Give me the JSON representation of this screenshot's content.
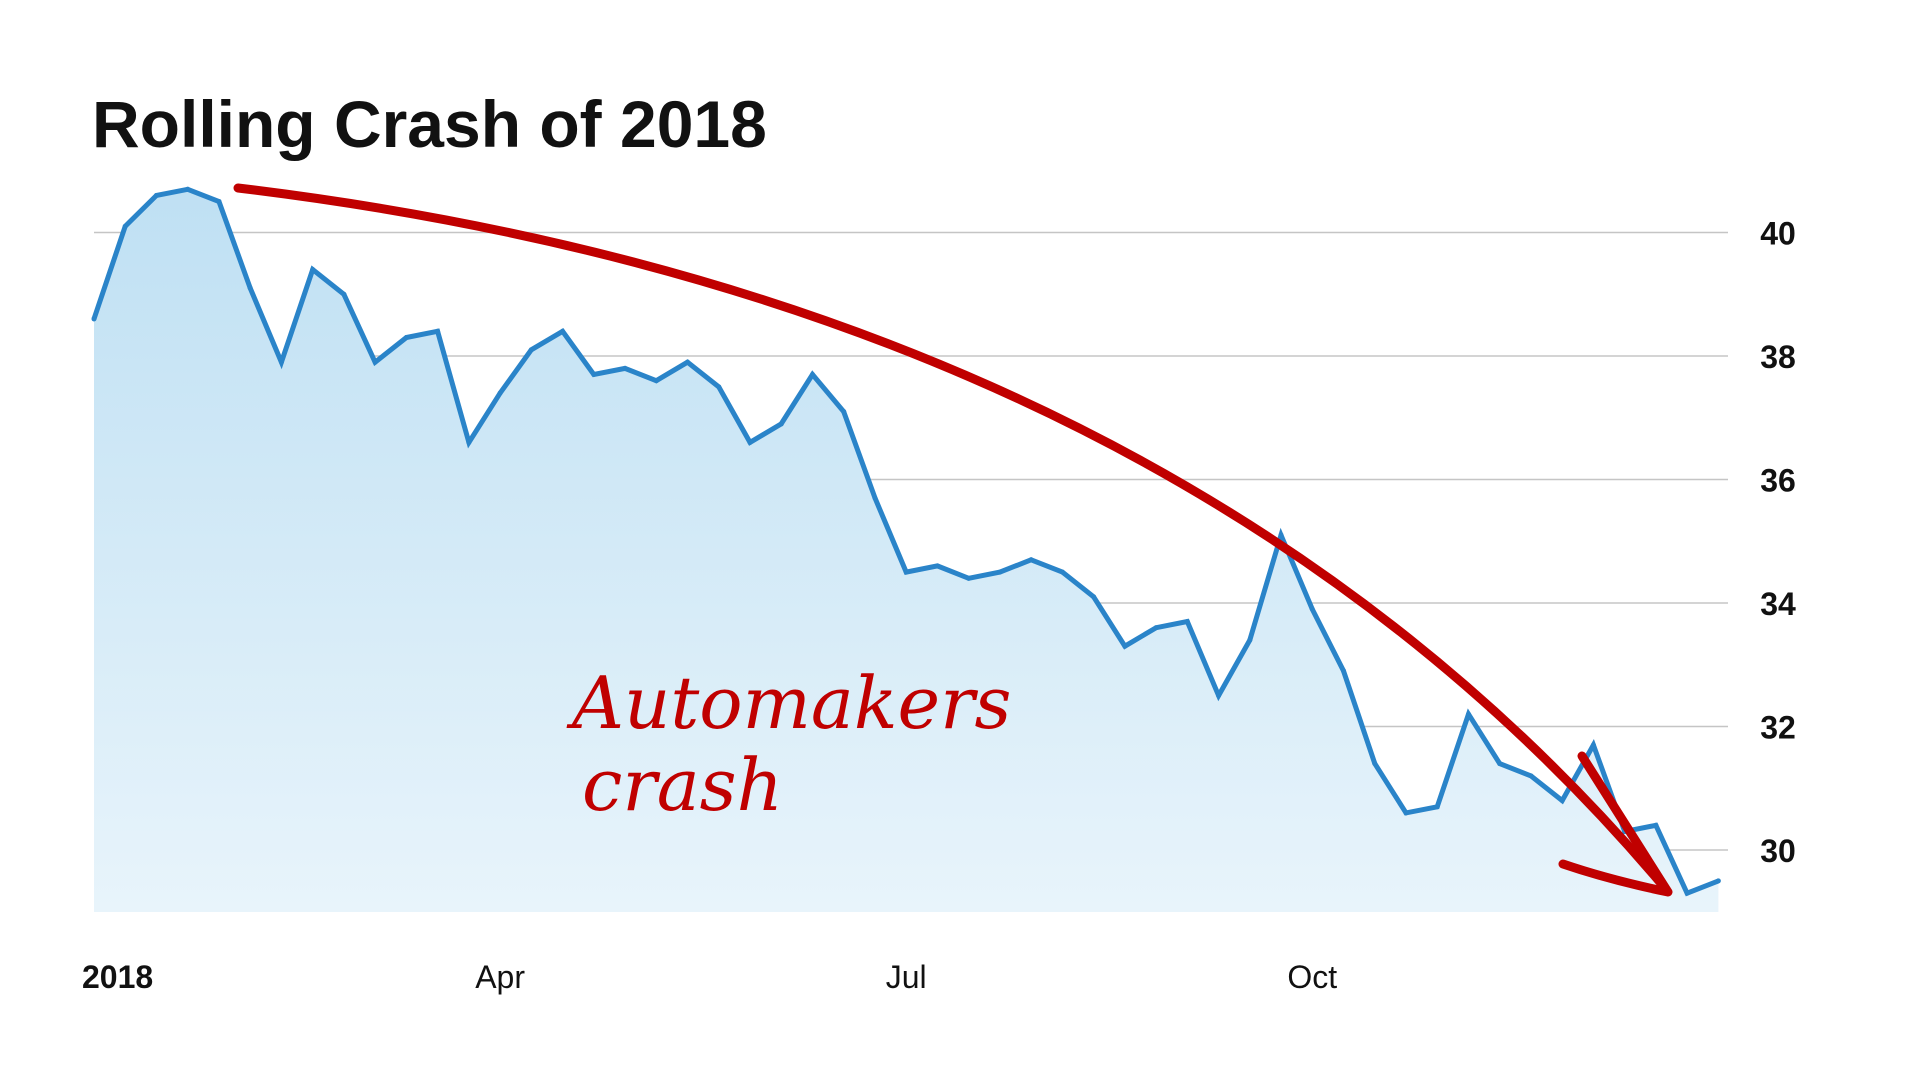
{
  "chart_data": {
    "type": "area",
    "title": "Rolling Crash of 2018",
    "xlabel": "",
    "ylabel": "",
    "x_tick_labels": [
      "2018",
      "Apr",
      "Jul",
      "Oct"
    ],
    "x_ticks": [
      {
        "label": "2018",
        "week": 0,
        "bold": true
      },
      {
        "label": "Apr",
        "week": 13,
        "bold": false
      },
      {
        "label": "Jul",
        "week": 26,
        "bold": false
      },
      {
        "label": "Oct",
        "week": 39,
        "bold": false
      }
    ],
    "y_ticks": [
      30,
      32,
      34,
      36,
      38,
      40
    ],
    "y_tick_labels": [
      "30",
      "32",
      "34",
      "36",
      "38",
      "40"
    ],
    "ylim": [
      29,
      41
    ],
    "x_range_weeks": [
      0,
      52.5
    ],
    "grid": true,
    "y_axis_side": "right",
    "series": [
      {
        "values": [
          38.6,
          40.1,
          40.6,
          40.7,
          40.5,
          39.1,
          37.9,
          39.4,
          39.0,
          37.9,
          38.3,
          38.4,
          36.6,
          37.4,
          38.1,
          38.4,
          37.7,
          37.8,
          37.6,
          37.9,
          37.5,
          36.6,
          36.9,
          37.7,
          37.1,
          35.7,
          34.5,
          34.6,
          34.4,
          34.5,
          34.7,
          34.5,
          34.1,
          33.3,
          33.6,
          33.7,
          32.5,
          33.4,
          35.1,
          33.9,
          32.9,
          31.4,
          30.6,
          30.7,
          32.2,
          31.4,
          31.2,
          30.8,
          31.7,
          30.3,
          30.4,
          29.3,
          29.5
        ]
      }
    ],
    "colors": {
      "line": "#2a84c9",
      "fill_top": "#bfe0f3",
      "fill_bottom": "#e8f4fb",
      "grid": "#c5c5c5",
      "annotation": "#c00000"
    }
  },
  "annotation": {
    "line1": "Automakers",
    "line2": "crash"
  }
}
